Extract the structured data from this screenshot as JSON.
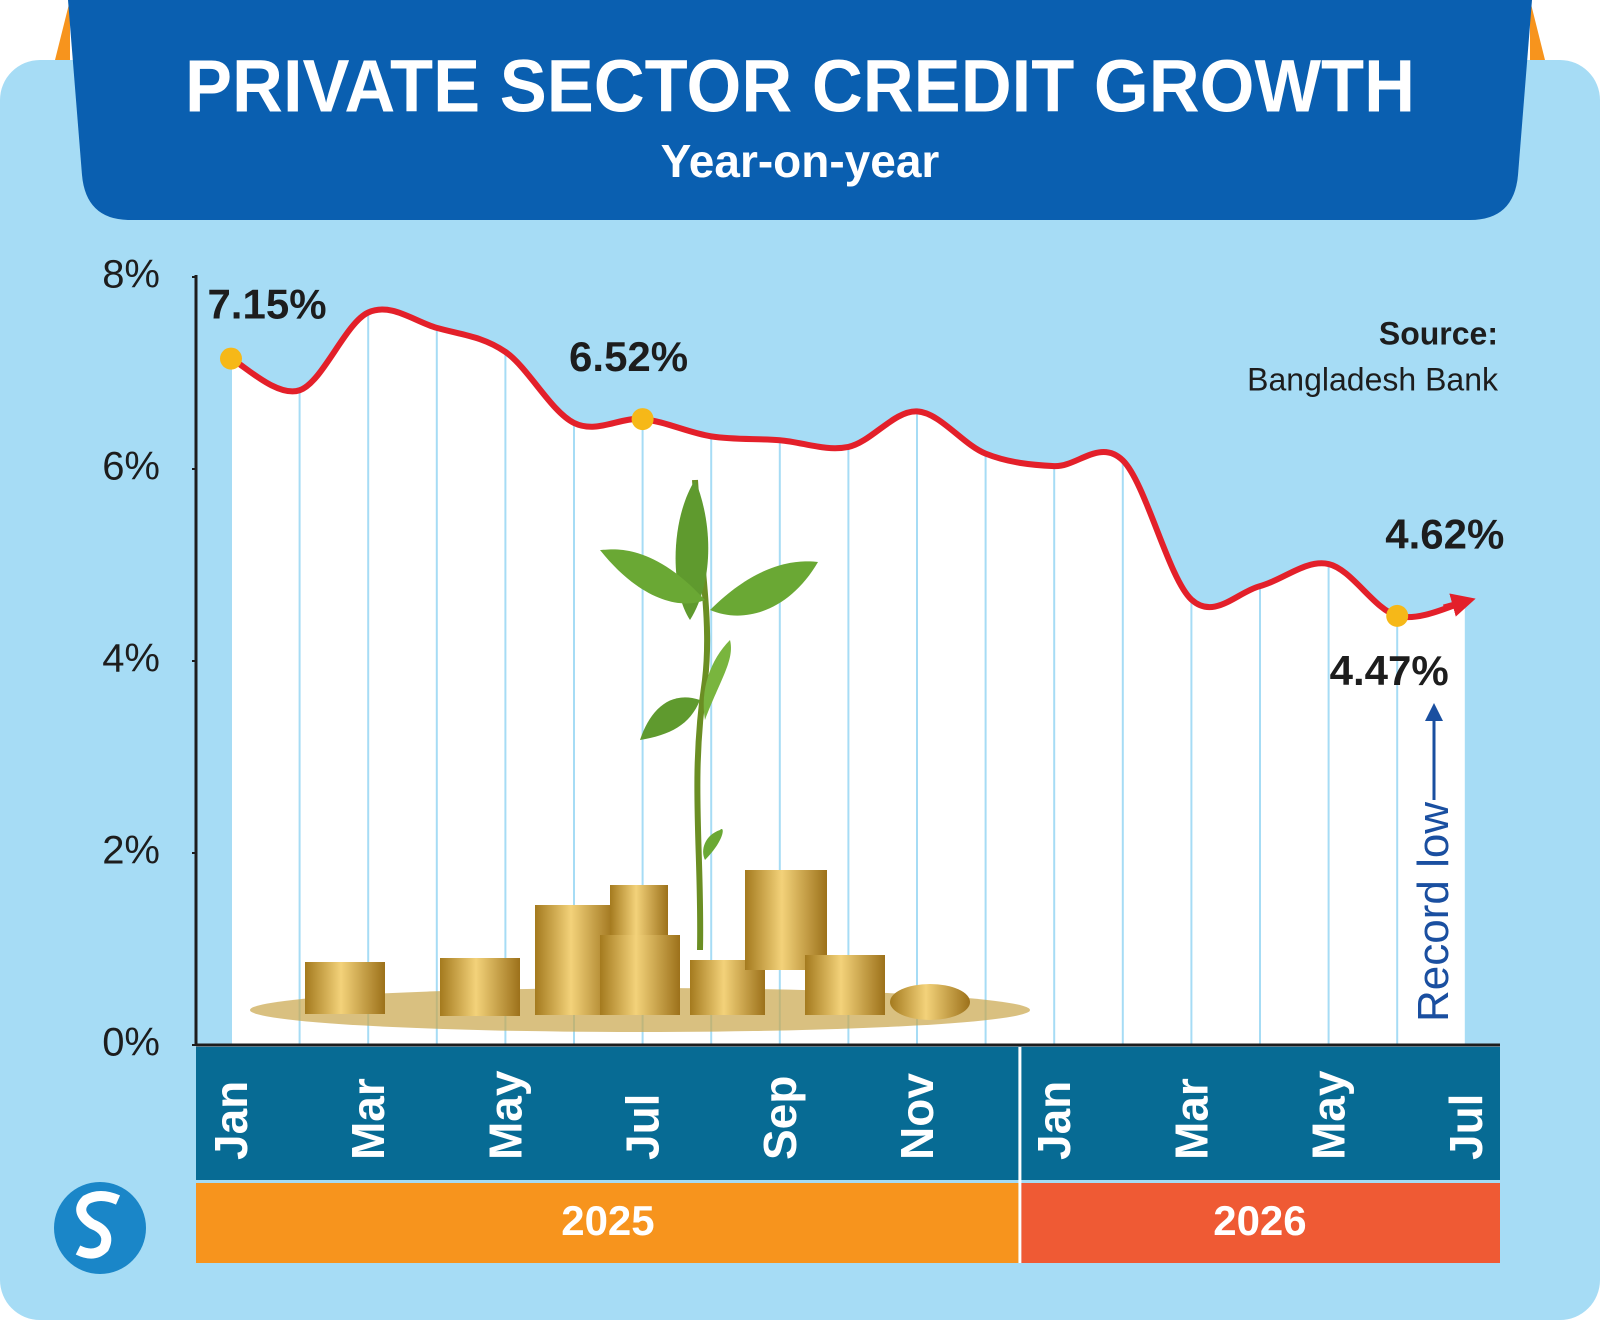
{
  "chart_data": {
    "type": "line",
    "title": "PRIVATE SECTOR CREDIT GROWTH",
    "subtitle": "Year-on-year",
    "source_label": "Source:",
    "source": "Bangladesh Bank",
    "annotation": "Record low",
    "categories": [
      "Jan",
      null,
      "Mar",
      null,
      "May",
      null,
      "Jul",
      null,
      "Sep",
      null,
      "Nov",
      null,
      "Jan",
      null,
      "Mar",
      null,
      "May",
      null,
      "Jul"
    ],
    "year_groups": [
      "2025",
      "2026"
    ],
    "series": [
      {
        "color": "#e3202a",
        "values": [
          7.15,
          6.82,
          7.63,
          7.47,
          7.22,
          6.48,
          6.52,
          6.34,
          6.3,
          6.23,
          6.6,
          6.16,
          6.03,
          6.09,
          4.64,
          4.78,
          5.01,
          4.47,
          4.62
        ],
        "value_labels": [
          "7.15%",
          null,
          null,
          null,
          null,
          null,
          "6.52%",
          null,
          null,
          null,
          null,
          null,
          null,
          null,
          null,
          null,
          null,
          "4.47%",
          "4.62%"
        ]
      }
    ],
    "ylim": [
      0,
      8
    ],
    "yticks": [
      {
        "value": 0,
        "label": "0%"
      },
      {
        "value": 2,
        "label": "2%"
      },
      {
        "value": 4,
        "label": "4%"
      },
      {
        "value": 6,
        "label": "6%"
      },
      {
        "value": 8,
        "label": "8%"
      }
    ]
  }
}
